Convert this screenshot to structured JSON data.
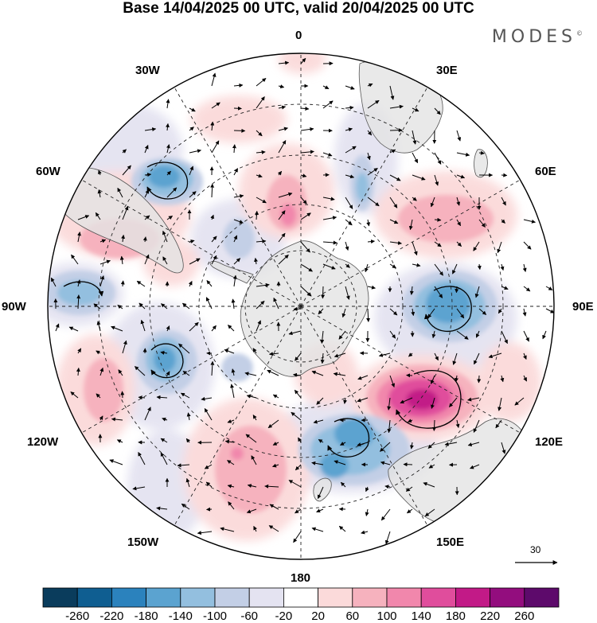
{
  "title": "Base 14/04/2025 00 UTC, valid 20/04/2025 00 UTC",
  "brand": "MODES",
  "brand_mark": "©",
  "longitude_labels": {
    "lon_0": "0",
    "lon_30e": "30E",
    "lon_60e": "60E",
    "lon_90e": "90E",
    "lon_120e": "120E",
    "lon_150e": "150E",
    "lon_180": "180",
    "lon_150w": "150W",
    "lon_120w": "120W",
    "lon_90w": "90W",
    "lon_60w": "60W",
    "lon_30w": "30W"
  },
  "vector_reference": "30",
  "colorbar": {
    "ticks": [
      "-260",
      "-220",
      "-180",
      "-140",
      "-100",
      "-60",
      "-20",
      "20",
      "60",
      "100",
      "140",
      "180",
      "220",
      "260"
    ],
    "colors": [
      "#0a3c5c",
      "#0f5e91",
      "#2b82bd",
      "#5ba3d0",
      "#93bfdf",
      "#c3cfe6",
      "#e4e3f1",
      "#ffffff",
      "#fbdada",
      "#f6b2be",
      "#f187ac",
      "#e04d9c",
      "#c21a87",
      "#930d7e",
      "#5d0a6b"
    ]
  },
  "anomaly_features": [
    {
      "name": "positive-anomaly-southern-indian",
      "lon_center": "120E",
      "max_class": "180"
    },
    {
      "name": "negative-anomaly-east",
      "lon_center": "90E",
      "max_class": "-180"
    },
    {
      "name": "negative-anomaly-south-pacific",
      "lon_center": "110W",
      "max_class": "-180"
    },
    {
      "name": "negative-anomaly-south-atlantic",
      "lon_center": "45W",
      "max_class": "-140"
    },
    {
      "name": "negative-anomaly-south-of-australia",
      "lon_center": "150E",
      "max_class": "-180"
    }
  ],
  "colors": {
    "land": "#e3e3e3",
    "coast": "#555555",
    "grid": "#222222"
  }
}
